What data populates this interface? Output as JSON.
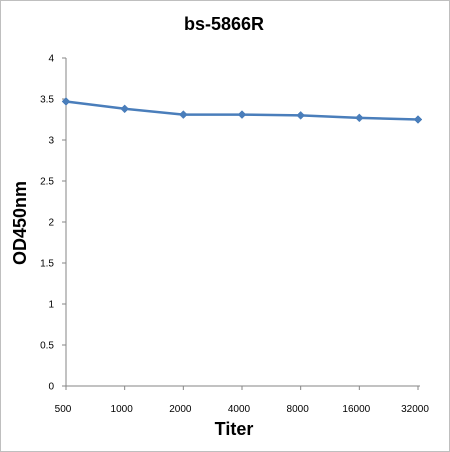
{
  "chart_data": {
    "type": "line",
    "title": "bs-5866R",
    "xlabel": "Titer",
    "ylabel": "OD450nm",
    "categories": [
      "500",
      "1000",
      "2000",
      "4000",
      "8000",
      "16000",
      "32000"
    ],
    "series": [
      {
        "values": [
          3.47,
          3.38,
          3.31,
          3.31,
          3.3,
          3.27,
          3.25
        ],
        "color": "#4a7ebb",
        "marker": "diamond"
      }
    ],
    "ylim": [
      0,
      4
    ],
    "yticks": [
      "0",
      "0.5",
      "1",
      "1.5",
      "2",
      "2.5",
      "3",
      "3.5",
      "4"
    ],
    "grid": false,
    "legend": "none"
  }
}
